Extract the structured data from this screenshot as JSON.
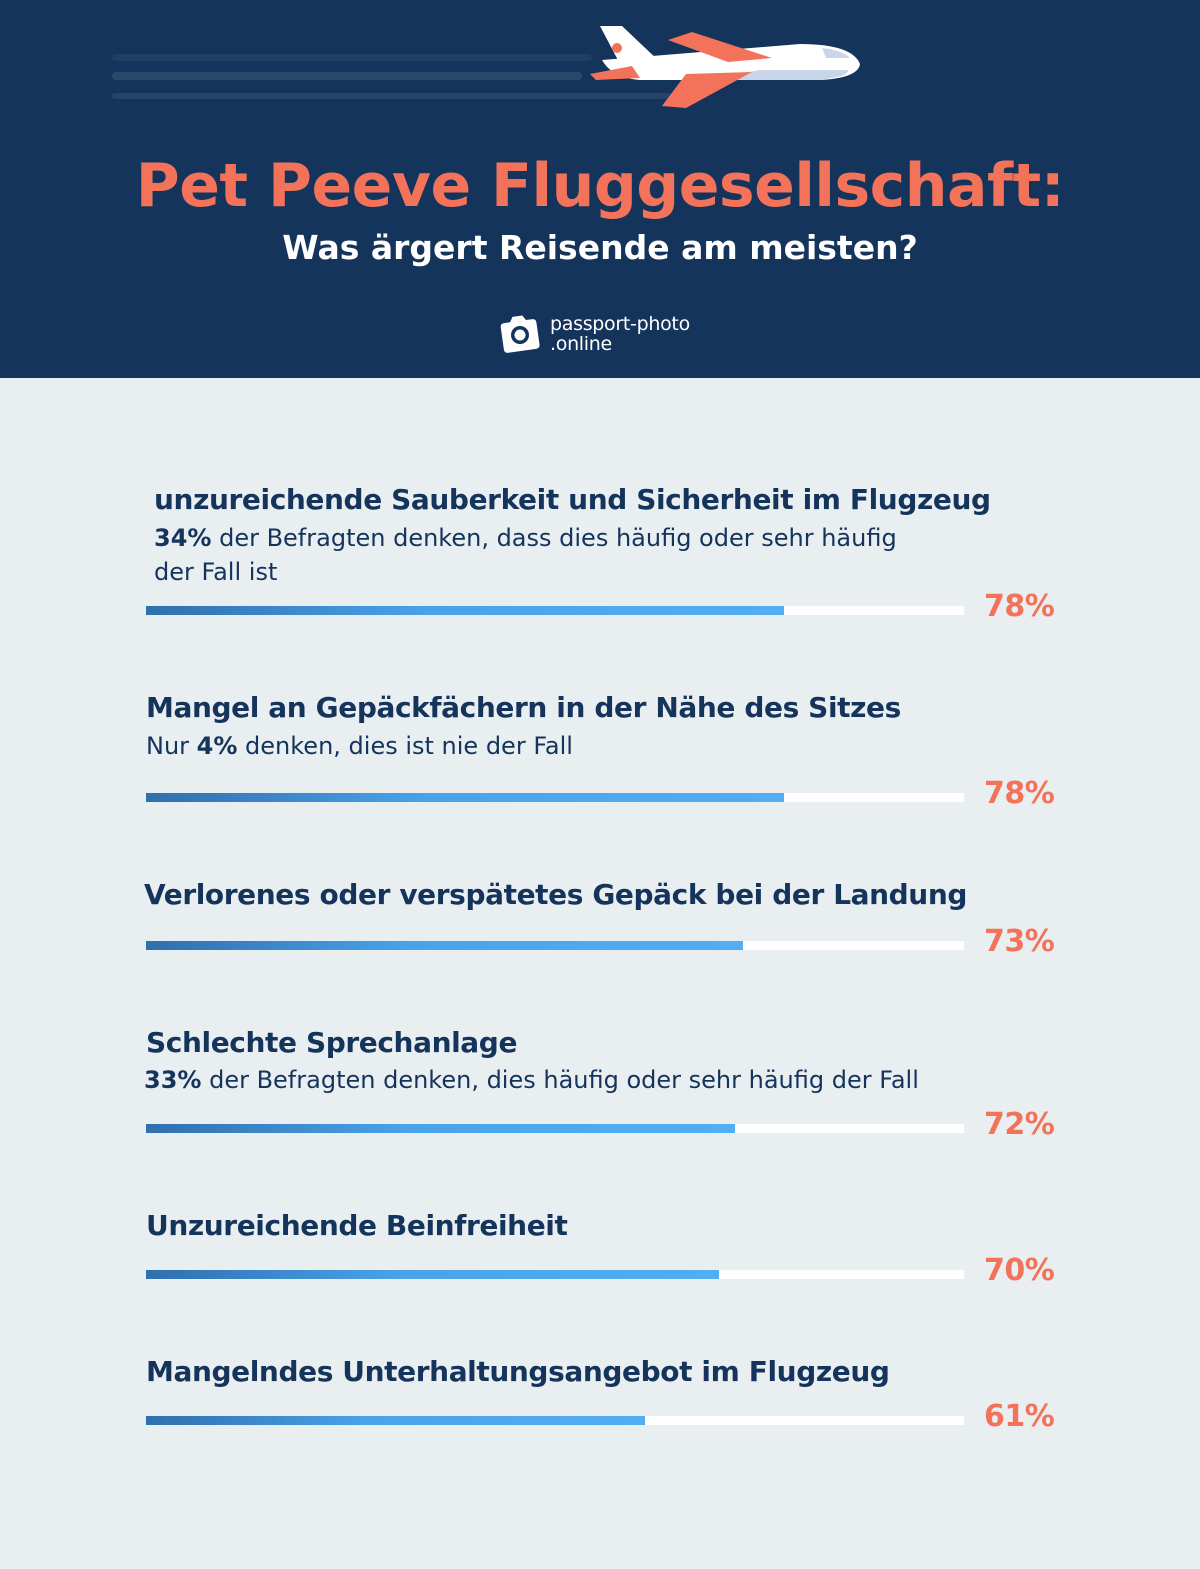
{
  "header": {
    "title": "Pet Peeve Fluggesellschaft:",
    "subtitle": "Was ärgert Reisende am meisten?",
    "logo_line1": "passport-photo",
    "logo_line2": ".online"
  },
  "colors": {
    "header_bg": "#14345b",
    "accent": "#f2735a",
    "bar": "#4aa3ea",
    "text": "#14345b",
    "background": "#e9eef1"
  },
  "chart_data": {
    "type": "bar",
    "orientation": "horizontal",
    "unit": "%",
    "xlim": [
      0,
      100
    ],
    "categories": [
      "unzureichende Sauberkeit und Sicherheit im Flugzeug",
      "Mangel an Gepäckfächern in der Nähe des Sitzes",
      "Verlorenes oder verspätetes Gepäck bei der Landung",
      "Schlechte Sprechanlage",
      "Unzureichende Beinfreiheit",
      "Mangelndes Unterhaltungsangebot im Flugzeug"
    ],
    "values": [
      78,
      78,
      73,
      72,
      70,
      61
    ],
    "value_labels": [
      "78%",
      "78%",
      "73%",
      "72%",
      "70%",
      "61%"
    ],
    "notes": [
      {
        "prefix": "",
        "bold": "34%",
        "rest": " der Befragten denken, dass dies häufig oder sehr häufig der Fall ist"
      },
      {
        "prefix": "Nur ",
        "bold": "4%",
        "rest": " denken, dies ist nie der Fall"
      },
      null,
      {
        "prefix": "",
        "bold": "33%",
        "rest": " der Befragten denken, dies häufig oder sehr häufig der Fall"
      },
      null,
      null
    ]
  }
}
